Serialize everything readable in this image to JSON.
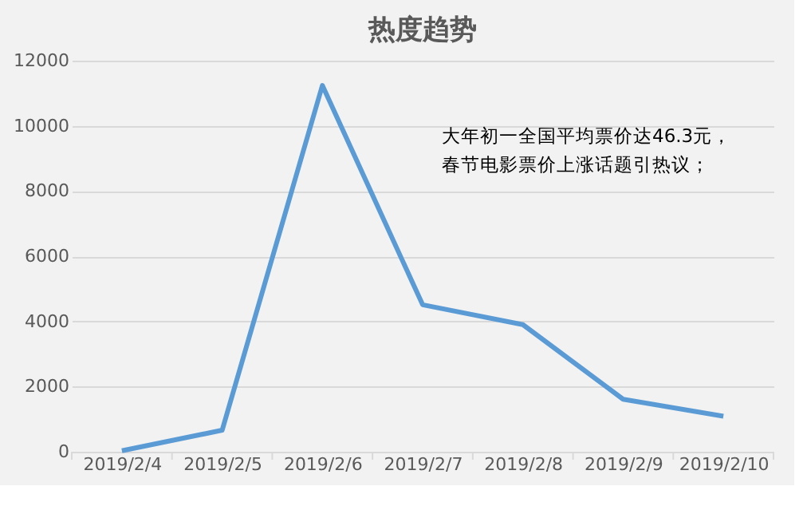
{
  "chart_data": {
    "type": "line",
    "title": "热度趋势",
    "categories": [
      "2019/2/4",
      "2019/2/5",
      "2019/2/6",
      "2019/2/7",
      "2019/2/8",
      "2019/2/9",
      "2019/2/10"
    ],
    "series": [
      {
        "color": "#5b9bd5",
        "values": [
          30,
          660,
          11240,
          4510,
          3900,
          1610,
          1090
        ]
      }
    ],
    "ylim": [
      0,
      12000
    ],
    "yticks": [
      0,
      2000,
      4000,
      6000,
      8000,
      10000,
      12000
    ],
    "grid": "y",
    "legend": false,
    "marker": "none",
    "line_style": "solid",
    "annotations": [
      "大年初一全国平均票价达46.3元，",
      "春节电影票价上涨话题引热议；"
    ]
  }
}
